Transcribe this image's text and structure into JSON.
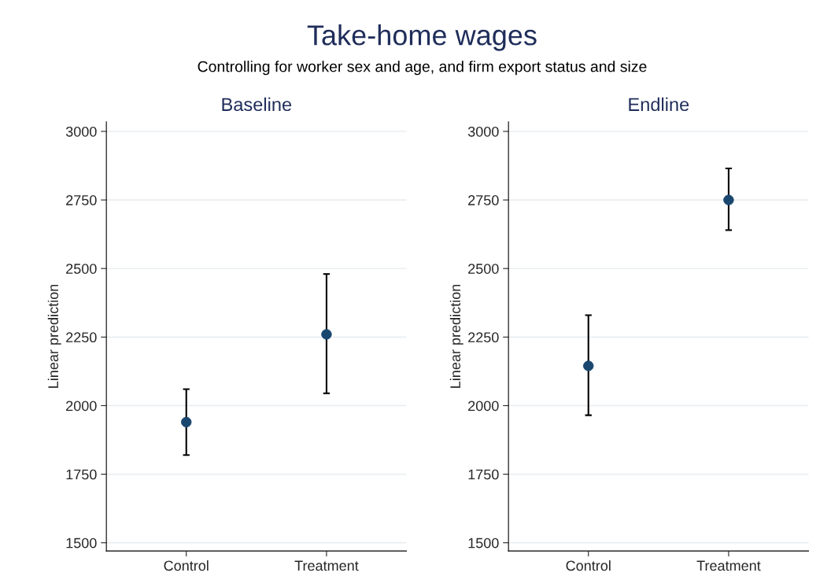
{
  "chart_data": [
    {
      "type": "scatter",
      "title": "Baseline",
      "ylabel": "Linear prediction",
      "annotations": [
        "Take-home wages",
        "Controlling for worker sex and age, and firm export status and size"
      ],
      "categories": [
        "Control",
        "Treatment"
      ],
      "series": [
        {
          "color": "#1a476f",
          "values": [
            1940,
            2260
          ],
          "errors": [
            [
              1820,
              2060
            ],
            [
              2045,
              2480
            ]
          ]
        }
      ],
      "ylim": [
        1470,
        3035
      ],
      "yticks": [
        1500,
        1750,
        2000,
        2250,
        2500,
        2750,
        3000
      ],
      "grid": "y",
      "marker": "circle",
      "legend": false
    },
    {
      "type": "scatter",
      "title": "Endline",
      "ylabel": "Linear prediction",
      "categories": [
        "Control",
        "Treatment"
      ],
      "series": [
        {
          "color": "#1a476f",
          "values": [
            2145,
            2750
          ],
          "errors": [
            [
              1965,
              2330
            ],
            [
              2640,
              2865
            ]
          ]
        }
      ],
      "ylim": [
        1470,
        3035
      ],
      "yticks": [
        1500,
        1750,
        2000,
        2250,
        2500,
        2750,
        3000
      ],
      "grid": "y",
      "marker": "circle",
      "legend": false
    }
  ]
}
